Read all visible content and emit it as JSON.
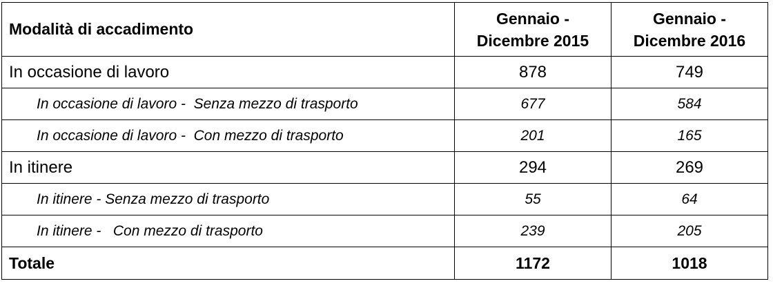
{
  "header": {
    "col1": "Modalità di accadimento",
    "col2_line1": "Gennaio -",
    "col2_line2": "Dicembre 2015",
    "col3_line1": "Gennaio -",
    "col3_line2": "Dicembre 2016"
  },
  "rows": [
    {
      "label": "In occasione di lavoro",
      "y2015": "878",
      "y2016": "749"
    },
    {
      "label": "In occasione di lavoro -  Senza mezzo di trasporto",
      "y2015": "677",
      "y2016": "584"
    },
    {
      "label": "In occasione di lavoro -  Con mezzo di trasporto",
      "y2015": "201",
      "y2016": "165"
    },
    {
      "label": "In itinere",
      "y2015": "294",
      "y2016": "269"
    },
    {
      "label": "In itinere - Senza mezzo di trasporto",
      "y2015": "55",
      "y2016": "64"
    },
    {
      "label": "In itinere -   Con mezzo di trasporto",
      "y2015": "239",
      "y2016": "205"
    }
  ],
  "total": {
    "label": "Totale",
    "y2015": "1172",
    "y2016": "1018"
  }
}
